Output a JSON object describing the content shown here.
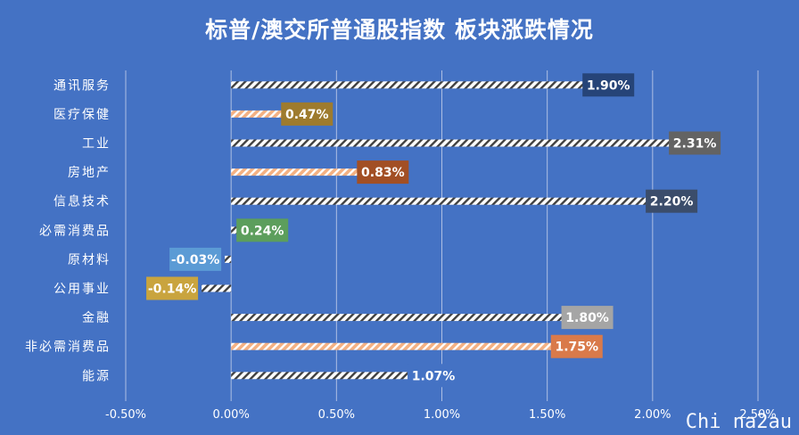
{
  "title": "标普/澳交所普通股指数 板块涨跌情况",
  "watermark": "Chi na2au",
  "chart_data": {
    "type": "bar",
    "orientation": "horizontal",
    "title": "标普/澳交所普通股指数 板块涨跌情况",
    "categories": [
      "通讯服务",
      "医疗保健",
      "工业",
      "房地产",
      "信息技术",
      "必需消费品",
      "原材料",
      "公用事业",
      "金融",
      "非必需消费品",
      "能源"
    ],
    "values": [
      1.9,
      0.47,
      2.31,
      0.83,
      2.2,
      0.24,
      -0.03,
      -0.14,
      1.8,
      1.75,
      1.07
    ],
    "data_labels": [
      "1.90%",
      "0.47%",
      "2.31%",
      "0.83%",
      "2.20%",
      "0.24%",
      "-0.03%",
      "-0.14%",
      "1.80%",
      "1.75%",
      "1.07%"
    ],
    "label_colors": [
      "#264478",
      "#9e7b2e",
      "#636363",
      "#a24f24",
      "#3b4d6b",
      "#5c9e5c",
      "#5b9bd5",
      "#c9a43e",
      "#a5a5a5",
      "#d97a4a",
      "#4472c4"
    ],
    "hatch_accent": [
      "#ffffff",
      "#f4b183",
      "#ffffff",
      "#f4b183",
      "#ffffff",
      "#ffffff",
      "#ffffff",
      "#ffffff",
      "#ffffff",
      "#f4b183",
      "#ffffff"
    ],
    "x_ticks": [
      "-0.50%",
      "0.00%",
      "0.50%",
      "1.00%",
      "1.50%",
      "2.00%",
      "2.50%"
    ],
    "x_tick_values": [
      -0.5,
      0,
      0.5,
      1.0,
      1.5,
      2.0,
      2.5
    ],
    "xlim": [
      -0.5,
      2.5
    ],
    "unit": "%",
    "grid": true
  }
}
